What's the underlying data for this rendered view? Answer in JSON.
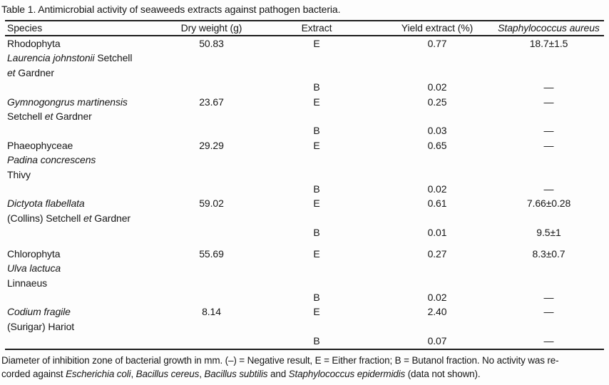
{
  "title": "Table 1. Antimicrobial activity of seaweeds extracts against pathogen bacteria.",
  "colors": {
    "background": "#fdfdfd",
    "text": "#161616",
    "rule": "#1c1c1c"
  },
  "table": {
    "columns": [
      {
        "label": "Species",
        "align": "left",
        "italic": false
      },
      {
        "label": "Dry weight (g)",
        "align": "center",
        "italic": false
      },
      {
        "label": "Extract",
        "align": "center",
        "italic": false
      },
      {
        "label": "Yield extract (%)",
        "align": "center",
        "italic": false
      },
      {
        "label": "Staphylococcus aureus",
        "align": "center",
        "italic": true
      }
    ],
    "rows": [
      {
        "species": [
          {
            "text": "Rhodophyta"
          }
        ],
        "dry_weight": "50.83",
        "extract": "E",
        "yield": "0.77",
        "s_aureus": "18.7±1.5"
      },
      {
        "species": [
          {
            "text": "Laurencia johnstonii",
            "italic": true
          },
          {
            "text": " Setchell"
          }
        ]
      },
      {
        "species": [
          {
            "text": "et",
            "italic": true
          },
          {
            "text": " Gardner"
          }
        ]
      },
      {
        "extract": "B",
        "yield": "0.02",
        "s_aureus": "—"
      },
      {
        "species": [
          {
            "text": "Gymnogongrus martinensis",
            "italic": true
          }
        ],
        "dry_weight": "23.67",
        "extract": "E",
        "yield": "0.25",
        "s_aureus": "—"
      },
      {
        "species": [
          {
            "text": "Setchell "
          },
          {
            "text": "et",
            "italic": true
          },
          {
            "text": " Gardner"
          }
        ]
      },
      {
        "extract": "B",
        "yield": "0.03",
        "s_aureus": "—"
      },
      {
        "species": [
          {
            "text": "Phaeophyceae"
          }
        ],
        "dry_weight": "29.29",
        "extract": "E",
        "yield": "0.65",
        "s_aureus": "—"
      },
      {
        "species": [
          {
            "text": "Padina concrescens",
            "italic": true
          }
        ]
      },
      {
        "species": [
          {
            "text": "Thivy"
          }
        ]
      },
      {
        "extract": "B",
        "yield": "0.02",
        "s_aureus": "—"
      },
      {
        "species": [
          {
            "text": "Dictyota flabellata",
            "italic": true
          }
        ],
        "dry_weight": "59.02",
        "extract": "E",
        "yield": "0.61",
        "s_aureus": "7.66±0.28"
      },
      {
        "species": [
          {
            "text": "(Collins) Setchell "
          },
          {
            "text": "et",
            "italic": true
          },
          {
            "text": " Gardner"
          }
        ]
      },
      {
        "extract": "B",
        "yield": "0.01",
        "s_aureus": "9.5±1"
      },
      {
        "species": [
          {
            "text": "Chlorophyta"
          }
        ],
        "dry_weight": "55.69",
        "extract": "E",
        "yield": "0.27",
        "s_aureus": "8.3±0.7"
      },
      {
        "species": [
          {
            "text": "Ulva lactuca",
            "italic": true
          }
        ]
      },
      {
        "species": [
          {
            "text": "Linnaeus"
          }
        ]
      },
      {
        "extract": "B",
        "yield": "0.02",
        "s_aureus": "—"
      },
      {
        "species": [
          {
            "text": "Codium fragile",
            "italic": true
          }
        ],
        "dry_weight": "8.14",
        "extract": "E",
        "yield": "2.40",
        "s_aureus": "—"
      },
      {
        "species": [
          {
            "text": "(Surigar) Hariot"
          }
        ]
      },
      {
        "extract": "B",
        "yield": "0.07",
        "s_aureus": "—"
      }
    ]
  },
  "footnote": {
    "lines": [
      [
        {
          "text": "Diameter of inhibition zone of bacterial growth in mm. (–) = Negative result, E = Either fraction; B = Butanol fraction. No activity was re-"
        }
      ],
      [
        {
          "text": "corded against "
        },
        {
          "text": "Escherichia coli",
          "italic": true
        },
        {
          "text": ", "
        },
        {
          "text": "Bacillus cereus",
          "italic": true
        },
        {
          "text": ", "
        },
        {
          "text": "Bacillus subtilis",
          "italic": true
        },
        {
          "text": " and "
        },
        {
          "text": "Staphylococcus epidermidis",
          "italic": true
        },
        {
          "text": " (data not shown)."
        }
      ]
    ]
  }
}
